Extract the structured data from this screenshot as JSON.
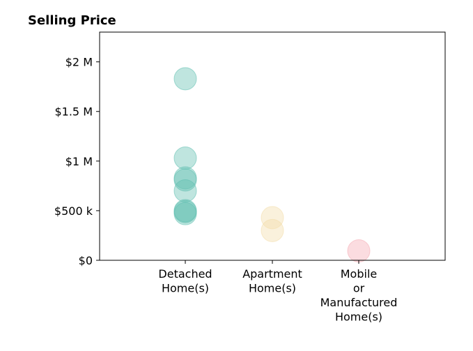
{
  "chart_data": {
    "type": "scatter",
    "title": "Selling Price",
    "xlabel": "",
    "ylabel": "",
    "ylim": [
      0,
      2300000
    ],
    "grid": false,
    "legend": "none",
    "y_ticks": [
      {
        "value": 0,
        "label": "$0"
      },
      {
        "value": 500000,
        "label": "$500 k"
      },
      {
        "value": 1000000,
        "label": "$1 M"
      },
      {
        "value": 1500000,
        "label": "$1.5 M"
      },
      {
        "value": 2000000,
        "label": "$2 M"
      }
    ],
    "categories": [
      {
        "label_lines": [
          "Detached",
          "Home(s)"
        ]
      },
      {
        "label_lines": [
          "Apartment",
          "Home(s)"
        ]
      },
      {
        "label_lines": [
          "Mobile",
          "or",
          "Manufactured",
          "Home(s)"
        ]
      }
    ],
    "series": [
      {
        "category_index": 0,
        "color": "#5fbfb0",
        "values": [
          1830000,
          1030000,
          830000,
          810000,
          700000,
          500000,
          490000,
          470000
        ]
      },
      {
        "category_index": 1,
        "color": "#f2dca8",
        "values": [
          430000,
          300000
        ]
      },
      {
        "category_index": 2,
        "color": "#f4a7b1",
        "values": [
          95000
        ]
      }
    ]
  }
}
